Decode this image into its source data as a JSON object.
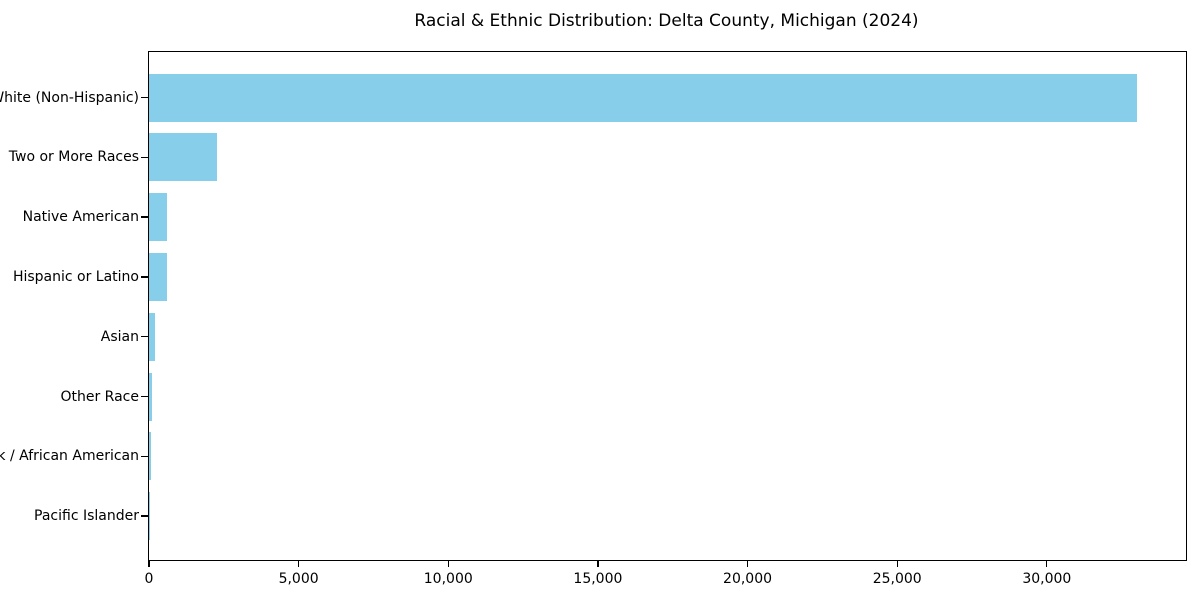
{
  "figure": {
    "title": "Racial & Ethnic Distribution: Delta County, Michigan (2024)"
  },
  "chart_data": {
    "type": "bar",
    "orientation": "horizontal",
    "title": "Racial & Ethnic Distribution: Delta County, Michigan (2024)",
    "categories": [
      "White (Non-Hispanic)",
      "Two or More Races",
      "Native American",
      "Hispanic or Latino",
      "Asian",
      "Other Race",
      "Black / African American",
      "Pacific Islander"
    ],
    "values": [
      33000,
      2270,
      605,
      600,
      205,
      85,
      80,
      10
    ],
    "xlabel": "",
    "ylabel": "",
    "xlim": [
      0,
      34650
    ],
    "xticks": [
      0,
      5000,
      10000,
      15000,
      20000,
      25000,
      30000
    ],
    "xtick_labels": [
      "0",
      "5,000",
      "10,000",
      "15,000",
      "20,000",
      "25,000",
      "30,000"
    ],
    "bar_color": "#87CEEB",
    "axis_color": "#000000",
    "grid": false,
    "legend": null
  }
}
